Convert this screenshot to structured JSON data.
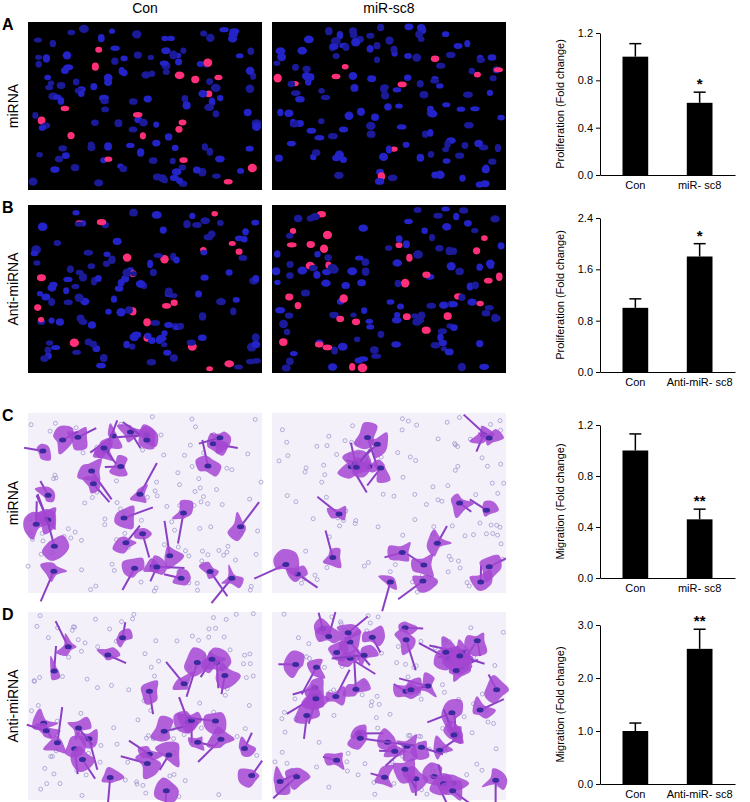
{
  "column_headers": [
    "Con",
    "miR-sc8"
  ],
  "chart_data": [
    {
      "type": "bar",
      "panel_label": "A",
      "row_label": "miRNA",
      "y_label": "Proliferation (Fold change)",
      "categories": [
        "Con",
        "miR- sc8"
      ],
      "values": [
        1.0,
        0.61
      ],
      "errors": [
        0.11,
        0.09
      ],
      "color": "#000000",
      "ylim": [
        0,
        1.2
      ],
      "yticks": [
        {
          "value": 0,
          "label": "0.0"
        },
        0.4,
        0.8,
        1.2
      ],
      "annotations": [
        {
          "category": "miR- sc8",
          "text": "*"
        }
      ]
    },
    {
      "type": "bar",
      "panel_label": "B",
      "row_label": "Anti-miRNA",
      "y_label": "Proliferation (Fold change)",
      "categories": [
        "Con",
        "Anti-miR- sc8"
      ],
      "values": [
        1.0,
        1.8
      ],
      "errors": [
        0.14,
        0.2
      ],
      "color": "#000000",
      "ylim": [
        0,
        2.4
      ],
      "yticks": [
        {
          "value": 0,
          "label": "0.0"
        },
        0.8,
        1.6,
        2.4
      ],
      "annotations": [
        {
          "category": "Anti-miR- sc8",
          "text": "*"
        }
      ]
    },
    {
      "type": "bar",
      "panel_label": "C",
      "row_label": "miRNA",
      "y_label": "Migration (Fold change)",
      "categories": [
        "Con",
        "miR- sc8"
      ],
      "values": [
        1.0,
        0.46
      ],
      "errors": [
        0.13,
        0.08
      ],
      "color": "#000000",
      "ylim": [
        0,
        1.2
      ],
      "yticks": [
        {
          "value": 0,
          "label": "0.0"
        },
        0.4,
        0.8,
        1.2
      ],
      "annotations": [
        {
          "category": "miR- sc8",
          "text": "**"
        }
      ]
    },
    {
      "type": "bar",
      "panel_label": "D",
      "row_label": "Anti-miRNA",
      "y_label": "Migration (Fold change)",
      "categories": [
        "Con",
        "Anti-miR- sc8"
      ],
      "values": [
        1.0,
        2.55
      ],
      "errors": [
        0.15,
        0.37
      ],
      "color": "#000000",
      "ylim": [
        0,
        3.0
      ],
      "yticks": [
        {
          "value": 0,
          "label": "0.0"
        },
        {
          "value": 1,
          "label": "1.0"
        },
        {
          "value": 2,
          "label": "2.0"
        },
        {
          "value": 3,
          "label": "3.0"
        }
      ],
      "annotations": [
        {
          "category": "Anti-miR- sc8",
          "text": "**"
        }
      ]
    }
  ]
}
